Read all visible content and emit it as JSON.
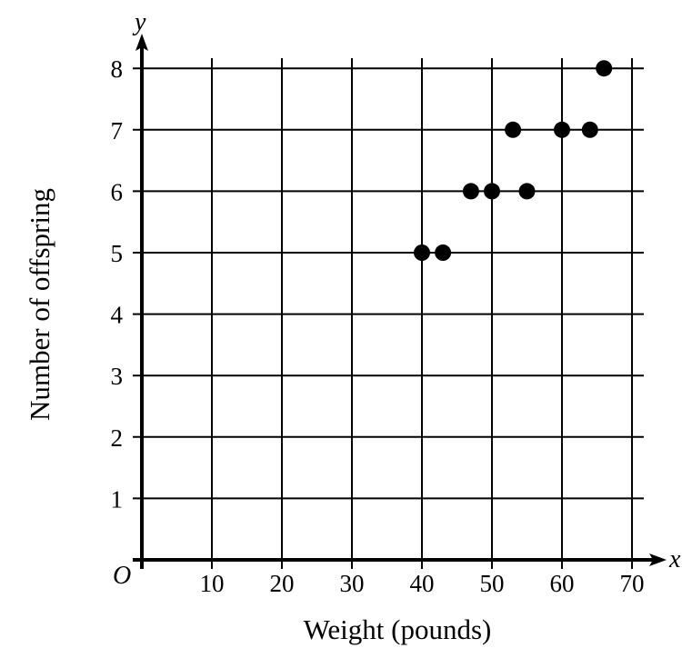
{
  "chart_data": {
    "type": "scatter",
    "xlabel": "Weight (pounds)",
    "ylabel": "Number of offspring",
    "x_axis_var": "x",
    "y_axis_var": "y",
    "origin_label": "O",
    "xlim": [
      0,
      70
    ],
    "ylim": [
      0,
      8
    ],
    "x_ticks": [
      "10",
      "20",
      "30",
      "40",
      "50",
      "60",
      "70"
    ],
    "y_ticks": [
      "1",
      "2",
      "3",
      "4",
      "5",
      "6",
      "7",
      "8"
    ],
    "grid": true,
    "points": [
      {
        "x": 40,
        "y": 5
      },
      {
        "x": 43,
        "y": 5
      },
      {
        "x": 47,
        "y": 6
      },
      {
        "x": 50,
        "y": 6
      },
      {
        "x": 53,
        "y": 7
      },
      {
        "x": 55,
        "y": 6
      },
      {
        "x": 60,
        "y": 7
      },
      {
        "x": 64,
        "y": 7
      },
      {
        "x": 66,
        "y": 8
      }
    ]
  }
}
